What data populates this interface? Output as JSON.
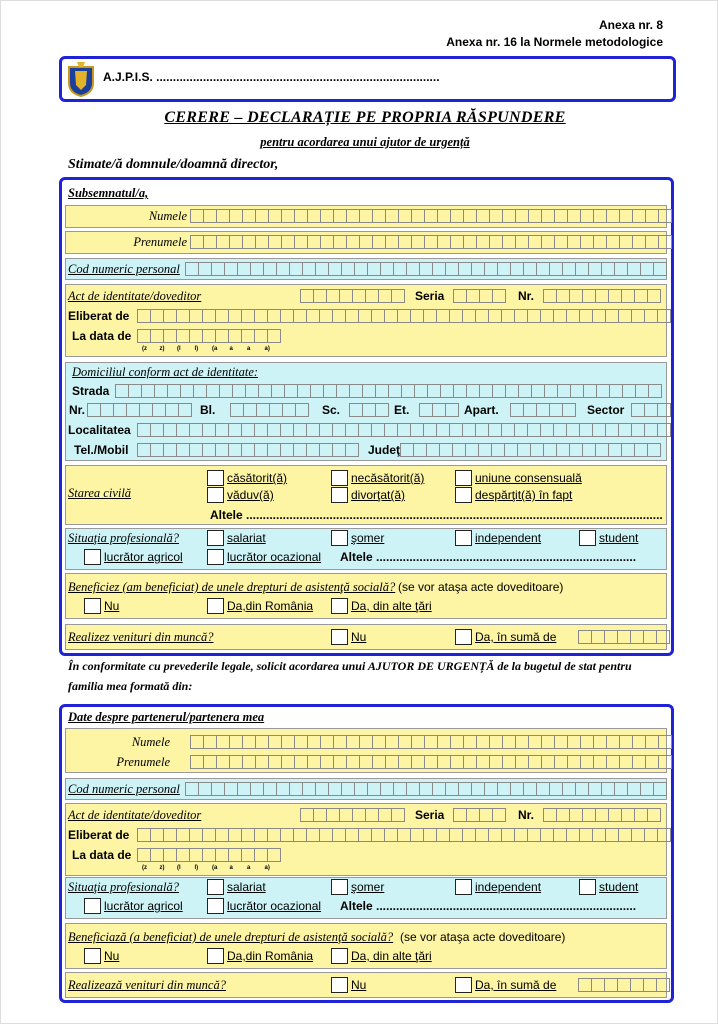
{
  "header": {
    "annex": "Anexa nr. 8",
    "annex_norms": "Anexa nr. 16 la Normele metodologice"
  },
  "agency": "A.J.P.I.S. .....................................................................................",
  "title": "CERERE – DECLARAȚIE PE PROPRIA RĂSPUNDERE",
  "subtitle": "pentru acordarea unui ajutor de urgență",
  "salutation": "Stimate/ă domnule/doamnă director,",
  "applicant": {
    "heading": "Subsemnatul/a,",
    "surname_label": "Numele",
    "given_name_label": "Prenumele",
    "cnp_label": "Cod numeric personal",
    "id_doc_label": "Act de identitate/doveditor",
    "series_label": "Seria",
    "number_label": "Nr.",
    "issued_by_label": "Eliberat de",
    "issue_date_label": "La data de",
    "date_format": [
      "(z",
      "z)",
      "(l",
      "l)",
      "(a",
      "a",
      "a",
      "a)"
    ],
    "address": {
      "label": "Domiciliul conform act de identitate:",
      "street": "Strada",
      "number": "Nr.",
      "block": "Bl.",
      "staircase": "Sc.",
      "floor": "Et.",
      "apartment": "Apart.",
      "sector": "Sector",
      "locality": "Localitatea",
      "phone": "Tel./Mobil",
      "county": "Judeţ"
    },
    "civil_status": {
      "label": "Starea civilă",
      "options": [
        "căsătorit(ă)",
        "necăsătorit(ă)",
        "uniune consensuală",
        "văduv(ă)",
        "divorţat(ă)",
        "despărţit(ă) în fapt"
      ],
      "other": "Altele ............................................................................................................................."
    },
    "professional": {
      "label": "Situaţia profesională?",
      "options": [
        "salariat",
        "şomer",
        "independent",
        "student",
        "lucrător agricol",
        "lucrător ocazional"
      ],
      "other": "Altele .............................................................................."
    },
    "benefits": {
      "label": "Beneficiez (am beneficiat) de unele drepturi de asistenţă socială?",
      "note": "(se vor ataşa acte doveditoare)",
      "options": [
        "Nu",
        "Da,din România",
        "Da, din alte ţări"
      ]
    },
    "income": {
      "label": "Realizez venituri din muncă?",
      "options": [
        "Nu",
        "Da, în sumă de"
      ]
    }
  },
  "statement": "În conformitate cu prevederile legale, solicit acordarea unui AJUTOR DE URGENȚĂ de la bugetul de stat pentru familia mea formată din:",
  "partner": {
    "heading": "Date despre partenerul/partenera mea",
    "surname_label": "Numele",
    "given_name_label": "Prenumele",
    "cnp_label": "Cod numeric personal",
    "id_doc_label": "Act de identitate/doveditor",
    "series_label": "Seria",
    "number_label": "Nr.",
    "issued_by_label": "Eliberat de",
    "issue_date_label": "La data de",
    "date_format": [
      "(z",
      "z)",
      "(l",
      "l)",
      "(a",
      "a",
      "a",
      "a)"
    ],
    "professional": {
      "label": "Situaţia profesională?",
      "options": [
        "salariat",
        "şomer",
        "independent",
        "student",
        "lucrător agricol",
        "lucrător ocazional"
      ],
      "other": "Altele .............................................................................."
    },
    "benefits": {
      "label": "Beneficiază (a beneficiat) de unele drepturi de asistenţă socială?",
      "note": "(se vor ataşa acte doveditoare)",
      "options": [
        "Nu",
        "Da,din România",
        "Da, din alte ţări"
      ]
    },
    "income": {
      "label": "Realizează venituri din muncă?",
      "options": [
        "Nu",
        "Da, în sumă de"
      ]
    }
  }
}
